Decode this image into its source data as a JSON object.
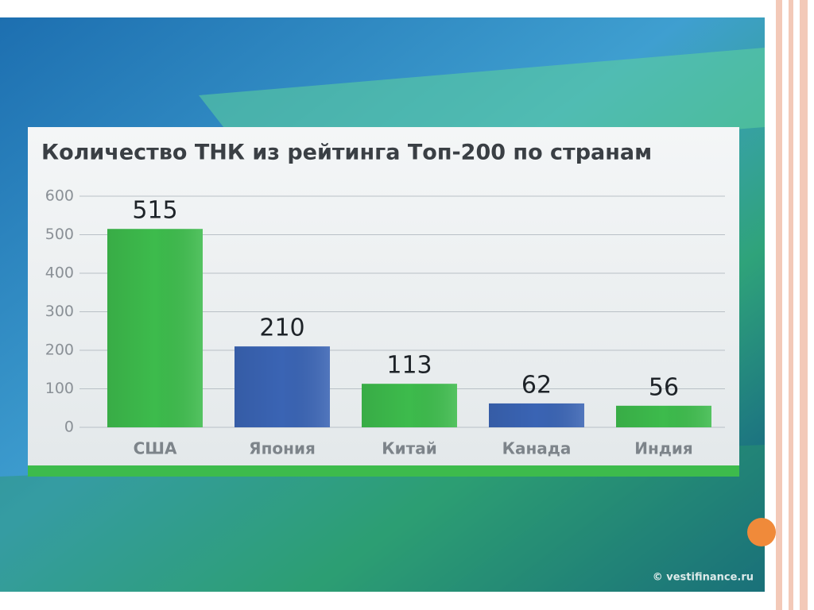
{
  "chart_data": {
    "type": "bar",
    "title": "Количество ТНК из рейтинга Топ-200 по странам",
    "categories": [
      "США",
      "Япония",
      "Китай",
      "Канада",
      "Индия"
    ],
    "values": [
      515,
      210,
      113,
      62,
      56
    ],
    "colors": [
      "#3dbb4c",
      "#3a64b4",
      "#3dbb4c",
      "#3a64b4",
      "#3dbb4c"
    ],
    "ylim": [
      0,
      600
    ],
    "yticks": [
      0,
      100,
      200,
      300,
      400,
      500,
      600
    ],
    "grid": true,
    "source": "© vestifinance.ru"
  }
}
